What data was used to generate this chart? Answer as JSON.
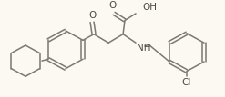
{
  "bg_color": "#fcf8f2",
  "line_color": "#7a7a72",
  "text_color": "#4a4a44",
  "bond_width": 1.1,
  "fig_width": 2.47,
  "fig_height": 1.07,
  "dpi": 100,
  "xlim": [
    0,
    247
  ],
  "ylim": [
    0,
    107
  ]
}
